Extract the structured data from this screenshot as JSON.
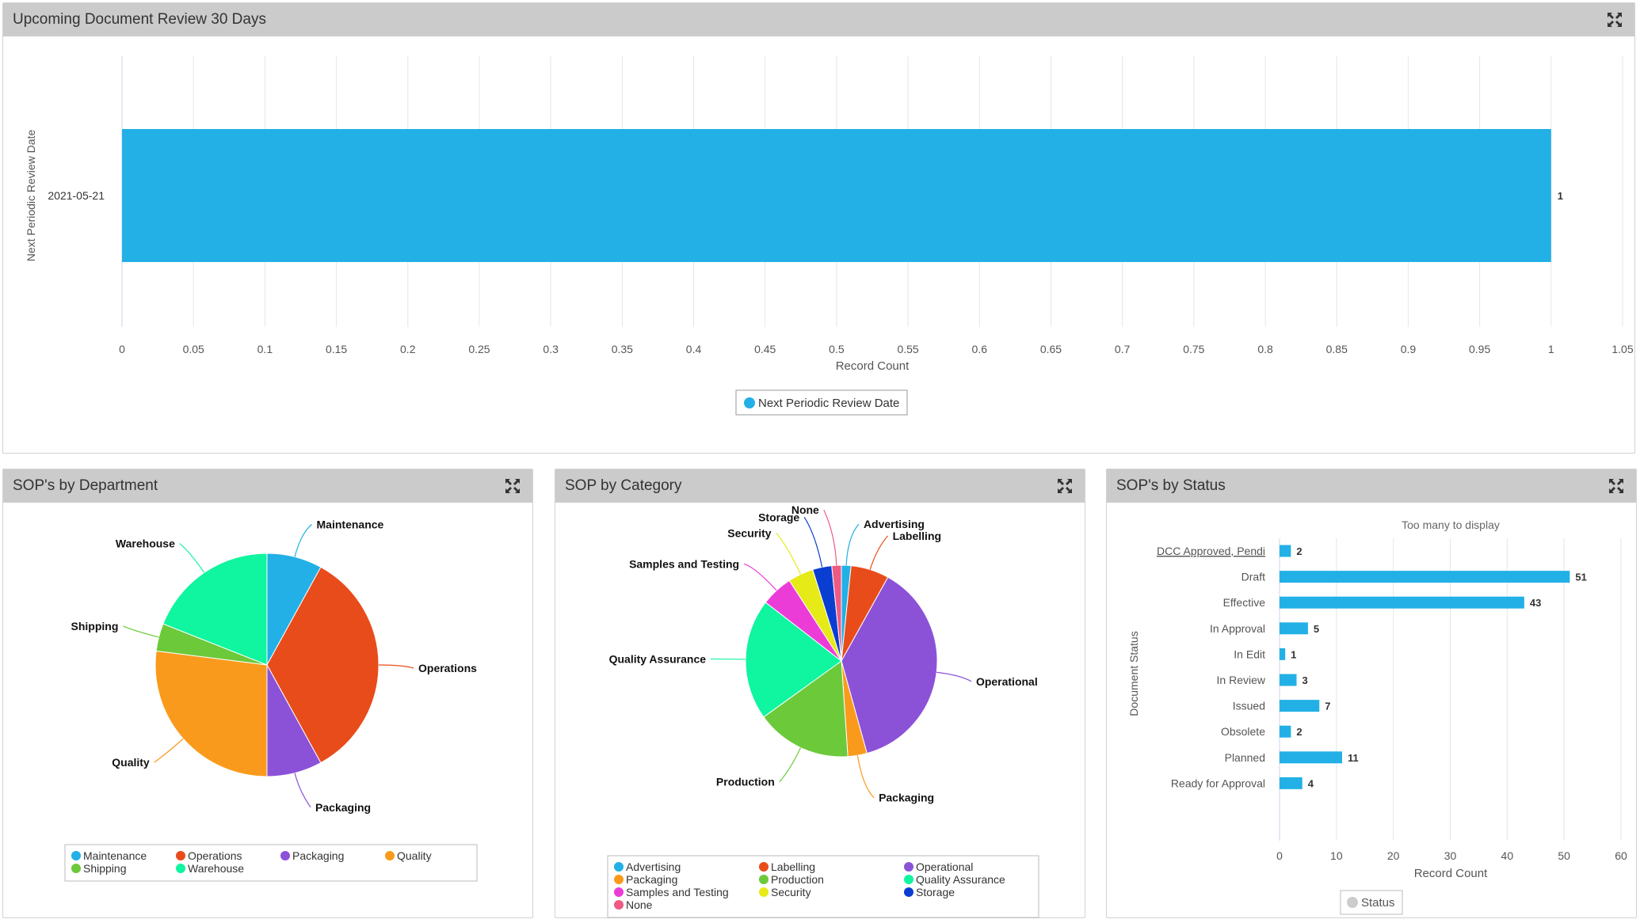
{
  "colors": {
    "bar": "#22b0e6",
    "grid": "#e6e6e6",
    "axis": "#ccd6eb",
    "header": "#cbcbcb"
  },
  "panels": {
    "review": {
      "title": "Upcoming Document Review 30 Days",
      "expand_icon": "expand-icon"
    },
    "department": {
      "title": "SOP's by Department",
      "expand_icon": "expand-icon"
    },
    "category": {
      "title": "SOP by Category",
      "expand_icon": "expand-icon"
    },
    "status": {
      "title": "SOP's by Status",
      "expand_icon": "expand-icon"
    }
  },
  "chart_data": [
    {
      "type": "bar",
      "orientation": "horizontal",
      "categories": [
        "2021-05-21"
      ],
      "series": [
        {
          "name": "Next Periodic Review Date",
          "values": [
            1
          ],
          "color": "#22b0e6"
        }
      ],
      "xlabel": "Record Count",
      "ylabel": "Next Periodic Review Date",
      "xlim": [
        0,
        1.05
      ],
      "xticks": [
        "0",
        "0.05",
        "0.1",
        "0.15",
        "0.2",
        "0.25",
        "0.3",
        "0.35",
        "0.4",
        "0.45",
        "0.5",
        "0.55",
        "0.6",
        "0.65",
        "0.7",
        "0.75",
        "0.8",
        "0.85",
        "0.9",
        "0.95",
        "1",
        "1.05"
      ],
      "data_labels": [
        "1"
      ],
      "legend": [
        "Next Periodic Review Date"
      ],
      "legend_position": "bottom",
      "grid": true
    },
    {
      "type": "pie",
      "labels": [
        "Maintenance",
        "Operations",
        "Packaging",
        "Quality",
        "Shipping",
        "Warehouse"
      ],
      "values": [
        8,
        34,
        8,
        27,
        4,
        19
      ],
      "colors": [
        "#22b0e6",
        "#e84c1a",
        "#8b52d8",
        "#fa9a1c",
        "#6cc93a",
        "#10f59f"
      ],
      "legend": [
        "Maintenance",
        "Operations",
        "Packaging",
        "Quality",
        "Shipping",
        "Warehouse"
      ],
      "legend_position": "bottom"
    },
    {
      "type": "pie",
      "labels": [
        "Advertising",
        "Labelling",
        "Operational",
        "Packaging",
        "Production",
        "Quality Assurance",
        "Samples and Testing",
        "Security",
        "Storage",
        "None"
      ],
      "values": [
        1.5,
        6,
        35,
        3,
        15,
        19,
        5,
        4,
        3,
        1.5
      ],
      "colors": [
        "#22b0e6",
        "#e84c1a",
        "#8b52d8",
        "#fa9a1c",
        "#6cc93a",
        "#10f59f",
        "#ec3cd8",
        "#e6ea16",
        "#0a3ed0",
        "#ee5a84"
      ],
      "legend": [
        "Advertising",
        "Labelling",
        "Operational",
        "Packaging",
        "Production",
        "Quality Assurance",
        "Samples and Testing",
        "Security",
        "Storage",
        "None"
      ],
      "legend_position": "bottom"
    },
    {
      "type": "bar",
      "orientation": "horizontal",
      "title": "Too many to display",
      "categories": [
        "DCC Approved, Pendi",
        "Draft",
        "Effective",
        "In Approval",
        "In Edit",
        "In Review",
        "Issued",
        "Obsolete",
        "Planned",
        "Ready for Approval"
      ],
      "series": [
        {
          "name": "Status",
          "values": [
            2,
            51,
            43,
            5,
            1,
            3,
            7,
            2,
            11,
            4
          ],
          "color": "#22b0e6"
        }
      ],
      "xlabel": "Record Count",
      "ylabel": "Document Status",
      "xlim": [
        0,
        60
      ],
      "xticks": [
        "0",
        "10",
        "20",
        "30",
        "40",
        "50",
        "60"
      ],
      "legend": [
        "Status"
      ],
      "legend_position": "bottom",
      "grid": true
    }
  ]
}
